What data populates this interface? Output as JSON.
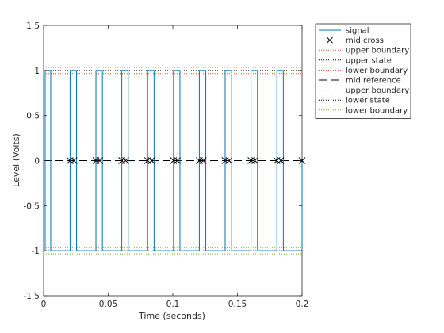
{
  "chart_data": {
    "type": "line",
    "title": "",
    "xlabel": "Time (seconds)",
    "ylabel": "Level (Volts)",
    "xlim": [
      0,
      0.2
    ],
    "ylim": [
      -1.5,
      1.5
    ],
    "x_ticks": [
      0,
      0.05,
      0.1,
      0.15,
      0.2
    ],
    "x_tick_labels": [
      "0",
      "0.05",
      "0.1",
      "0.15",
      "0.2"
    ],
    "y_ticks": [
      -1.5,
      -1,
      -0.5,
      0,
      0.5,
      1,
      1.5
    ],
    "y_tick_labels": [
      "-1.5",
      "-1",
      "-0.5",
      "0",
      "0.5",
      "1",
      "1.5"
    ],
    "grid": false,
    "legend_position": "outside-right-top",
    "colors": {
      "signal": "#0072bd",
      "axis": "#262626",
      "upper": "#d95319",
      "lower": "#77ac30",
      "state": "#000000"
    },
    "series": [
      {
        "name": "signal",
        "style": "solid-line",
        "color": "#0072bd",
        "high": 1,
        "low": -1,
        "pulses": [
          [
            0.0012,
            0.0055
          ],
          [
            0.0205,
            0.0255
          ],
          [
            0.0405,
            0.0455
          ],
          [
            0.0605,
            0.0655
          ],
          [
            0.0805,
            0.0855
          ],
          [
            0.1005,
            0.1055
          ],
          [
            0.1205,
            0.1255
          ],
          [
            0.1405,
            0.1455
          ],
          [
            0.1605,
            0.1655
          ],
          [
            0.1805,
            0.1855
          ]
        ]
      },
      {
        "name": "mid cross",
        "style": "x-marker",
        "color": "#000000",
        "x": [
          0.0205,
          0.0235,
          0.0405,
          0.0435,
          0.0605,
          0.0635,
          0.0805,
          0.0835,
          0.1005,
          0.1035,
          0.1205,
          0.1235,
          0.1405,
          0.1435,
          0.1605,
          0.1635,
          0.1805,
          0.1835,
          0.2
        ],
        "y": 0
      },
      {
        "name": "upper boundary",
        "style": "dotted-line",
        "color": "#d95319",
        "y": 1.035
      },
      {
        "name": "upper state",
        "style": "dotted-line",
        "color": "#000000",
        "y": 1.0
      },
      {
        "name": "lower boundary",
        "style": "dotted-line",
        "color": "#d95319",
        "y": 0.965
      },
      {
        "name": "mid reference",
        "style": "dashed-line",
        "color": "#000000",
        "y": 0
      },
      {
        "name": "upper boundary",
        "style": "dotted-line",
        "color": "#77ac30",
        "y": -0.965
      },
      {
        "name": "lower state",
        "style": "dotted-line",
        "color": "#000000",
        "y": -1.0
      },
      {
        "name": "lower boundary",
        "style": "dotted-line",
        "color": "#77ac30",
        "y": -1.035
      }
    ],
    "legend": [
      {
        "label": "signal",
        "style": "solid-line",
        "color": "#0072bd"
      },
      {
        "label": "mid cross",
        "style": "x-marker",
        "color": "#000000"
      },
      {
        "label": "upper boundary",
        "style": "dotted-line",
        "color": "#d95319"
      },
      {
        "label": "upper state",
        "style": "dotted-line",
        "color": "#000000"
      },
      {
        "label": "lower boundary",
        "style": "dotted-line",
        "color": "#d95319"
      },
      {
        "label": "mid reference",
        "style": "dashed-line",
        "color": "#000000"
      },
      {
        "label": "upper boundary",
        "style": "dotted-line",
        "color": "#77ac30"
      },
      {
        "label": "lower state",
        "style": "dotted-line",
        "color": "#000000"
      },
      {
        "label": "lower boundary",
        "style": "dotted-line",
        "color": "#77ac30"
      }
    ]
  }
}
